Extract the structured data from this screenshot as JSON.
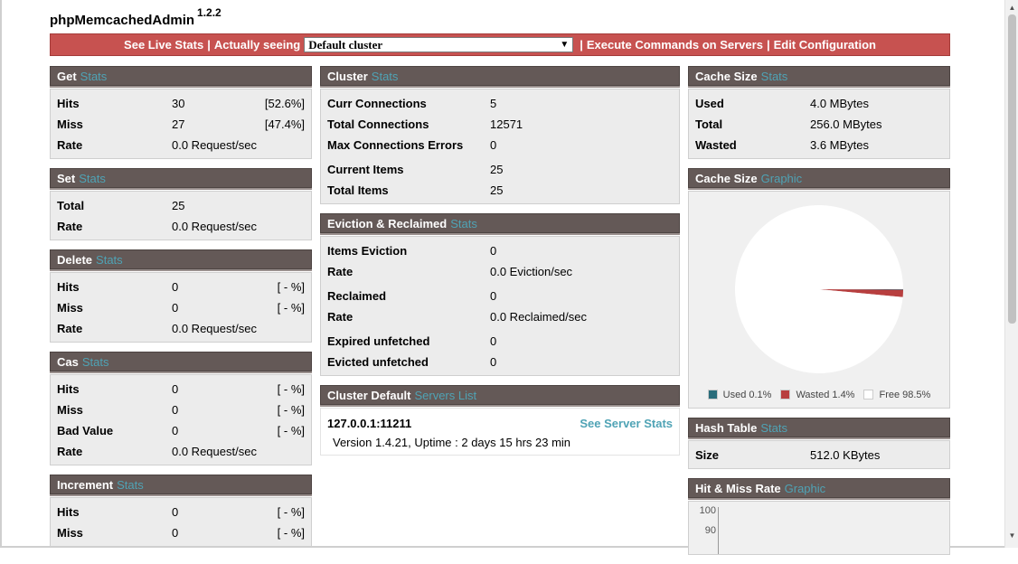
{
  "app": {
    "title": "phpMemcachedAdmin",
    "version": "1.2.2"
  },
  "menu": {
    "live_stats": "See Live Stats",
    "actually_seeing": "Actually seeing",
    "cluster_select": "Default cluster",
    "execute_commands": "Execute Commands on Servers",
    "edit_configuration": "Edit Configuration",
    "separator": "|"
  },
  "colors": {
    "menu_bg": "#c75250",
    "panel_header": "#645957",
    "accent": "#4fa3b5",
    "pie_used": "#2a6d7b",
    "pie_wasted": "#b83f3f",
    "pie_free": "#ffffff"
  },
  "get_stats": {
    "title": "Get",
    "accent": "Stats",
    "rows": [
      {
        "label": "Hits",
        "value": "30",
        "pct": "[52.6%]"
      },
      {
        "label": "Miss",
        "value": "27",
        "pct": "[47.4%]"
      },
      {
        "label": "Rate",
        "value": "0.0 Request/sec",
        "pct": ""
      }
    ]
  },
  "set_stats": {
    "title": "Set",
    "accent": "Stats",
    "rows": [
      {
        "label": "Total",
        "value": "25"
      },
      {
        "label": "Rate",
        "value": "0.0 Request/sec"
      }
    ]
  },
  "delete_stats": {
    "title": "Delete",
    "accent": "Stats",
    "rows": [
      {
        "label": "Hits",
        "value": "0",
        "pct": "[ - %]"
      },
      {
        "label": "Miss",
        "value": "0",
        "pct": "[ - %]"
      },
      {
        "label": "Rate",
        "value": "0.0 Request/sec",
        "pct": ""
      }
    ]
  },
  "cas_stats": {
    "title": "Cas",
    "accent": "Stats",
    "rows": [
      {
        "label": "Hits",
        "value": "0",
        "pct": "[ - %]"
      },
      {
        "label": "Miss",
        "value": "0",
        "pct": "[ - %]"
      },
      {
        "label": "Bad Value",
        "value": "0",
        "pct": "[ - %]"
      },
      {
        "label": "Rate",
        "value": "0.0 Request/sec",
        "pct": ""
      }
    ]
  },
  "increment_stats": {
    "title": "Increment",
    "accent": "Stats",
    "rows": [
      {
        "label": "Hits",
        "value": "0",
        "pct": "[ - %]"
      },
      {
        "label": "Miss",
        "value": "0",
        "pct": "[ - %]"
      }
    ]
  },
  "cluster_stats": {
    "title": "Cluster",
    "accent": "Stats",
    "rows": [
      {
        "label": "Curr Connections",
        "value": "5"
      },
      {
        "label": "Total Connections",
        "value": "12571"
      },
      {
        "label": "Max Connections Errors",
        "value": "0"
      },
      {
        "label": "Current Items",
        "value": "25"
      },
      {
        "label": "Total Items",
        "value": "25"
      }
    ]
  },
  "eviction_stats": {
    "title": "Eviction & Reclaimed",
    "accent": "Stats",
    "rows": [
      {
        "label": "Items Eviction",
        "value": "0"
      },
      {
        "label": "Rate",
        "value": "0.0 Eviction/sec"
      },
      {
        "label": "Reclaimed",
        "value": "0"
      },
      {
        "label": "Rate",
        "value": "0.0 Reclaimed/sec"
      },
      {
        "label": "Expired unfetched",
        "value": "0"
      },
      {
        "label": "Evicted unfetched",
        "value": "0"
      }
    ]
  },
  "servers": {
    "title": "Cluster Default",
    "accent": "Servers List",
    "address": "127.0.0.1:11211",
    "link": "See Server Stats",
    "version": "Version 1.4.21, Uptime : 2 days 15 hrs 23 min"
  },
  "cache_size_stats": {
    "title": "Cache Size",
    "accent": "Stats",
    "rows": [
      {
        "label": "Used",
        "value": "4.0 MBytes"
      },
      {
        "label": "Total",
        "value": "256.0 MBytes"
      },
      {
        "label": "Wasted",
        "value": "3.6 MBytes"
      }
    ]
  },
  "cache_size_graphic": {
    "title": "Cache Size",
    "accent": "Graphic",
    "legend": [
      {
        "label": "Used 0.1%",
        "color": "#2a6d7b"
      },
      {
        "label": "Wasted 1.4%",
        "color": "#b83f3f"
      },
      {
        "label": "Free 98.5%",
        "color": "#ffffff"
      }
    ]
  },
  "chart_data": {
    "type": "pie",
    "title": "",
    "categories": [
      "Used",
      "Wasted",
      "Free"
    ],
    "values": [
      0.1,
      1.4,
      98.5
    ],
    "colors": [
      "#2a6d7b",
      "#b83f3f",
      "#ffffff"
    ],
    "legend": "bottom"
  },
  "hash_table_stats": {
    "title": "Hash Table",
    "accent": "Stats",
    "rows": [
      {
        "label": "Size",
        "value": "512.0 KBytes"
      }
    ]
  },
  "hit_miss_graphic": {
    "title": "Hit & Miss Rate",
    "accent": "Graphic",
    "ticks": [
      "100",
      "90"
    ]
  }
}
